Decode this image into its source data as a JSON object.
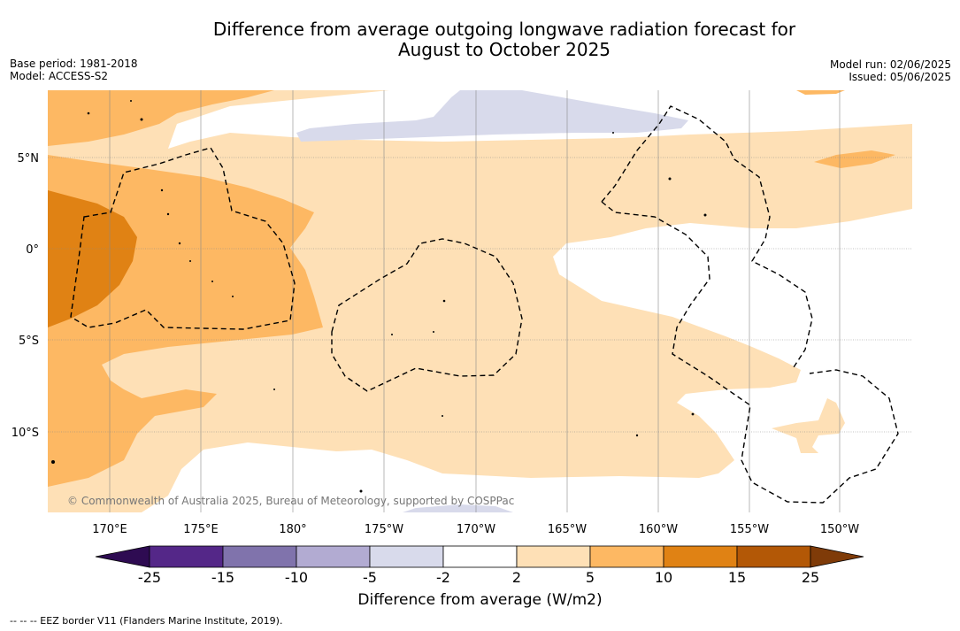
{
  "title_line1": "Difference from average outgoing longwave radiation forecast for",
  "title_line2": "August to October 2025",
  "meta_left": {
    "base_period": "Base period: 1981-2018",
    "model": "Model: ACCESS-S2"
  },
  "meta_right": {
    "model_run": "Model run: 02/06/2025",
    "issued": "Issued: 05/06/2025"
  },
  "lat_labels": [
    "5°N",
    "0°",
    "5°S",
    "10°S"
  ],
  "lon_labels": [
    "170°E",
    "175°E",
    "180°",
    "175°W",
    "170°W",
    "165°W",
    "160°W",
    "155°W",
    "150°W"
  ],
  "copyright": "© Commonwealth of Australia 2025, Bureau of Meteorology, supported by COSPPac",
  "colorbar": {
    "ticks": [
      "-25",
      "-15",
      "-10",
      "-5",
      "-2",
      "2",
      "5",
      "10",
      "15",
      "25"
    ],
    "colors": [
      "#2e0b52",
      "#542788",
      "#8073ac",
      "#b2abd2",
      "#d8daeb",
      "#ffffff",
      "#fee0b6",
      "#fdb863",
      "#e08214",
      "#b35806",
      "#7f3b08"
    ],
    "label": "Difference from average (W/m2)"
  },
  "footer": "--  --  -- EEZ border V11 (Flanders Marine Institute, 2019)."
}
